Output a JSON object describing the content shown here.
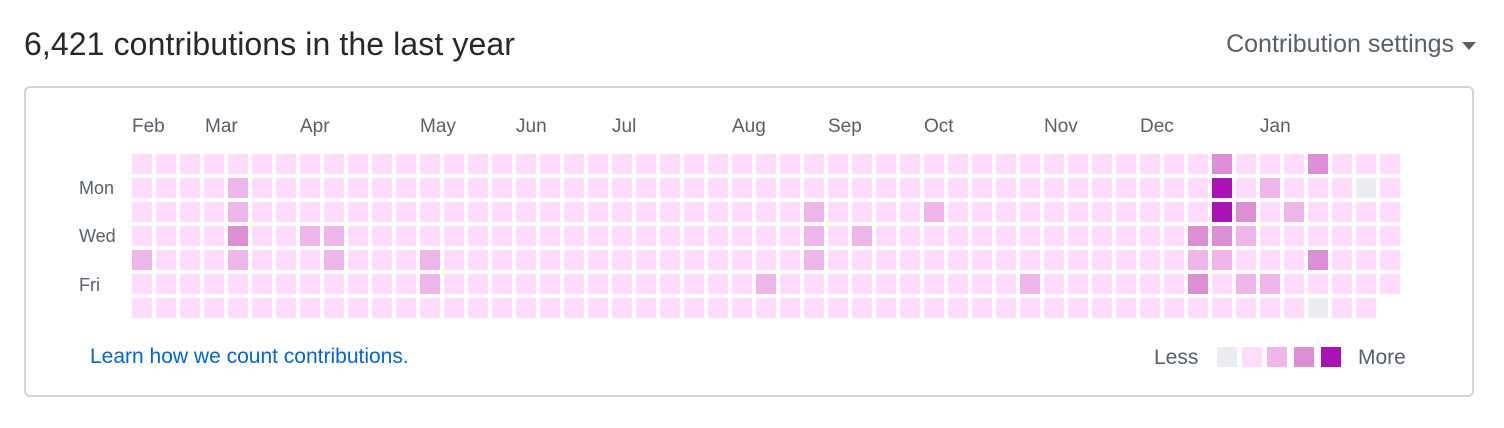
{
  "header": {
    "title": "6,421 contributions in the last year",
    "settings_label": "Contribution settings"
  },
  "months": [
    "Feb",
    "Mar",
    "Apr",
    "May",
    "Jun",
    "Jul",
    "Aug",
    "Sep",
    "Oct",
    "Nov",
    "Dec",
    "Jan"
  ],
  "days": [
    "Mon",
    "Wed",
    "Fri"
  ],
  "footer": {
    "learn_link": "Learn how we count contributions.",
    "less": "Less",
    "more": "More"
  },
  "colors": {
    "level0": "#ebedf0",
    "level1": "#ffdcfb",
    "level2": "#f0b5ea",
    "level3": "#dc8fd4",
    "level4": "#a912b5"
  },
  "heatmap": {
    "weeks": 53,
    "days_per_week": 7,
    "default_level": 1,
    "last_week_days": 6,
    "cells": [
      {
        "week": 4,
        "day": 1,
        "level": 2
      },
      {
        "week": 4,
        "day": 2,
        "level": 2
      },
      {
        "week": 4,
        "day": 3,
        "level": 3
      },
      {
        "week": 4,
        "day": 4,
        "level": 2
      },
      {
        "week": 0,
        "day": 4,
        "level": 2
      },
      {
        "week": 7,
        "day": 3,
        "level": 2
      },
      {
        "week": 8,
        "day": 3,
        "level": 2
      },
      {
        "week": 8,
        "day": 4,
        "level": 2
      },
      {
        "week": 12,
        "day": 4,
        "level": 2
      },
      {
        "week": 12,
        "day": 5,
        "level": 2
      },
      {
        "week": 26,
        "day": 5,
        "level": 2
      },
      {
        "week": 28,
        "day": 2,
        "level": 2
      },
      {
        "week": 28,
        "day": 3,
        "level": 2
      },
      {
        "week": 28,
        "day": 4,
        "level": 2
      },
      {
        "week": 30,
        "day": 3,
        "level": 2
      },
      {
        "week": 33,
        "day": 2,
        "level": 2
      },
      {
        "week": 37,
        "day": 5,
        "level": 2
      },
      {
        "week": 44,
        "day": 3,
        "level": 3
      },
      {
        "week": 44,
        "day": 4,
        "level": 2
      },
      {
        "week": 44,
        "day": 5,
        "level": 3
      },
      {
        "week": 45,
        "day": 0,
        "level": 3
      },
      {
        "week": 45,
        "day": 1,
        "level": 4
      },
      {
        "week": 45,
        "day": 2,
        "level": 4
      },
      {
        "week": 45,
        "day": 3,
        "level": 3
      },
      {
        "week": 45,
        "day": 4,
        "level": 2
      },
      {
        "week": 46,
        "day": 2,
        "level": 3
      },
      {
        "week": 46,
        "day": 3,
        "level": 2
      },
      {
        "week": 46,
        "day": 5,
        "level": 2
      },
      {
        "week": 47,
        "day": 1,
        "level": 2
      },
      {
        "week": 47,
        "day": 5,
        "level": 2
      },
      {
        "week": 48,
        "day": 2,
        "level": 2
      },
      {
        "week": 49,
        "day": 0,
        "level": 3
      },
      {
        "week": 49,
        "day": 4,
        "level": 3
      },
      {
        "week": 51,
        "day": 1,
        "level": 0
      },
      {
        "week": 49,
        "day": 6,
        "level": 0
      }
    ]
  }
}
